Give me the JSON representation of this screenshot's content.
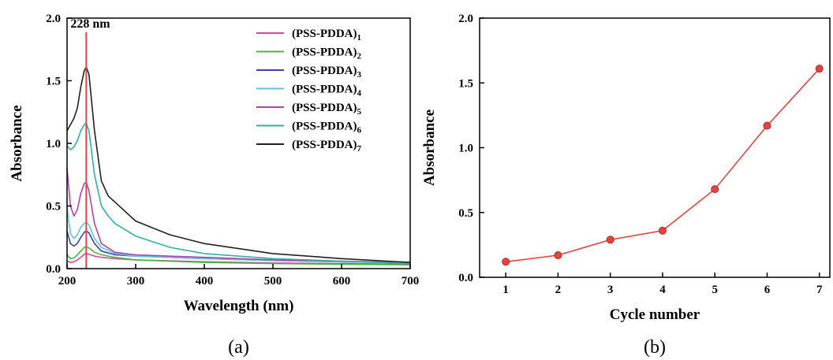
{
  "chart_data": [
    {
      "type": "line",
      "panel_label": "(a)",
      "xlabel": "Wavelength (nm)",
      "ylabel": "Absorbance",
      "xlim": [
        200,
        700
      ],
      "ylim": [
        0,
        2.0
      ],
      "xticks": [
        200,
        300,
        400,
        500,
        600,
        700
      ],
      "yticks": [
        0.0,
        0.5,
        1.0,
        1.5,
        2.0
      ],
      "grid": false,
      "legend_position": "top-right",
      "annotation": {
        "text": "228 nm",
        "x": 228,
        "color": "#e8423f"
      },
      "series": [
        {
          "name": "(PSS-PDDA)",
          "subscript": "1",
          "color": "#d9479a",
          "x": [
            200,
            205,
            210,
            215,
            220,
            225,
            228,
            232,
            240,
            250,
            270,
            300,
            400,
            500,
            600,
            700
          ],
          "y": [
            0.06,
            0.05,
            0.055,
            0.07,
            0.09,
            0.115,
            0.12,
            0.115,
            0.1,
            0.09,
            0.08,
            0.07,
            0.055,
            0.045,
            0.04,
            0.035
          ]
        },
        {
          "name": "(PSS-PDDA)",
          "subscript": "2",
          "color": "#45b83f",
          "x": [
            200,
            205,
            210,
            215,
            220,
            225,
            228,
            232,
            240,
            250,
            270,
            300,
            400,
            500,
            600,
            700
          ],
          "y": [
            0.11,
            0.08,
            0.085,
            0.11,
            0.14,
            0.17,
            0.175,
            0.165,
            0.13,
            0.11,
            0.09,
            0.07,
            0.05,
            0.04,
            0.035,
            0.03
          ]
        },
        {
          "name": "(PSS-PDDA)",
          "subscript": "3",
          "color": "#3a44b0",
          "x": [
            200,
            205,
            210,
            215,
            220,
            225,
            228,
            232,
            240,
            250,
            270,
            300,
            400,
            500,
            600,
            700
          ],
          "y": [
            0.3,
            0.2,
            0.18,
            0.2,
            0.25,
            0.29,
            0.3,
            0.285,
            0.2,
            0.14,
            0.11,
            0.1,
            0.08,
            0.065,
            0.055,
            0.045
          ]
        },
        {
          "name": "(PSS-PDDA)",
          "subscript": "4",
          "color": "#5ec7d9",
          "x": [
            200,
            205,
            210,
            215,
            220,
            225,
            228,
            232,
            240,
            250,
            270,
            300,
            400,
            500,
            600,
            700
          ],
          "y": [
            0.48,
            0.28,
            0.24,
            0.27,
            0.33,
            0.36,
            0.37,
            0.35,
            0.24,
            0.17,
            0.12,
            0.1,
            0.08,
            0.065,
            0.055,
            0.045
          ]
        },
        {
          "name": "(PSS-PDDA)",
          "subscript": "5",
          "color": "#b043b0",
          "x": [
            200,
            205,
            210,
            215,
            220,
            225,
            228,
            232,
            240,
            250,
            270,
            300,
            400,
            500,
            600,
            700
          ],
          "y": [
            0.8,
            0.5,
            0.42,
            0.47,
            0.6,
            0.68,
            0.69,
            0.62,
            0.36,
            0.2,
            0.13,
            0.11,
            0.09,
            0.07,
            0.06,
            0.05
          ]
        },
        {
          "name": "(PSS-PDDA)",
          "subscript": "6",
          "color": "#2bb3a8",
          "x": [
            200,
            205,
            210,
            215,
            220,
            225,
            228,
            232,
            240,
            250,
            260,
            270,
            300,
            350,
            400,
            500,
            600,
            700
          ],
          "y": [
            0.98,
            0.95,
            0.97,
            1.02,
            1.1,
            1.15,
            1.16,
            1.1,
            0.75,
            0.5,
            0.42,
            0.36,
            0.26,
            0.17,
            0.12,
            0.08,
            0.06,
            0.04
          ]
        },
        {
          "name": "(PSS-PDDA)",
          "subscript": "7",
          "color": "#222222",
          "x": [
            200,
            205,
            210,
            215,
            220,
            225,
            228,
            232,
            240,
            250,
            260,
            270,
            280,
            300,
            350,
            400,
            500,
            600,
            700
          ],
          "y": [
            1.1,
            1.15,
            1.2,
            1.28,
            1.45,
            1.58,
            1.61,
            1.55,
            1.1,
            0.7,
            0.58,
            0.53,
            0.48,
            0.38,
            0.27,
            0.2,
            0.12,
            0.08,
            0.05
          ]
        }
      ]
    },
    {
      "type": "line",
      "panel_label": "(b)",
      "xlabel": "Cycle number",
      "ylabel": "Absorbance",
      "xlim": [
        0.5,
        7.2
      ],
      "ylim": [
        0,
        2.0
      ],
      "xticks": [
        1,
        2,
        3,
        4,
        5,
        6,
        7
      ],
      "yticks": [
        0.0,
        0.5,
        1.0,
        1.5,
        2.0
      ],
      "grid": false,
      "series": [
        {
          "name": "",
          "color": "#e8423f",
          "x": [
            1,
            2,
            3,
            4,
            5,
            6,
            7
          ],
          "y": [
            0.12,
            0.17,
            0.29,
            0.36,
            0.68,
            1.17,
            1.61
          ]
        }
      ]
    }
  ]
}
